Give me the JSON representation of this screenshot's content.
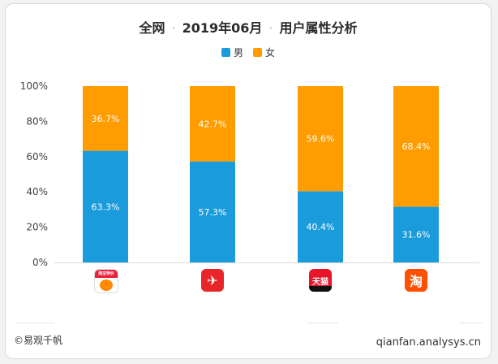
{
  "header": {
    "scope": "全网",
    "period": "2019年06月",
    "title": "用户属性分析"
  },
  "colors": {
    "male": "#1a9bdc",
    "female": "#ff9c00"
  },
  "chart_data": {
    "type": "bar",
    "stacked": true,
    "categories": [
      "taobao-tejia-app",
      "kaola-app",
      "tmall-app",
      "taobao-app"
    ],
    "series": [
      {
        "name": "男",
        "values": [
          63.3,
          57.3,
          40.4,
          31.6
        ],
        "labels": [
          "63.3%",
          "57.3%",
          "40.4%",
          "31.6%"
        ]
      },
      {
        "name": "女",
        "values": [
          36.7,
          42.7,
          59.6,
          68.4
        ],
        "labels": [
          "36.7%",
          "42.7%",
          "59.6%",
          "68.4%"
        ]
      }
    ],
    "yticks": [
      "0%",
      "20%",
      "40%",
      "60%",
      "80%",
      "100%"
    ],
    "ylim": [
      0,
      100
    ],
    "legend_position": "top-center",
    "grid": false
  },
  "app_icons": [
    {
      "name": "taobao-tejia-icon",
      "text": "淘宝特价"
    },
    {
      "name": "kaola-icon",
      "text": ""
    },
    {
      "name": "tmall-icon",
      "text": "天猫"
    },
    {
      "name": "taobao-icon",
      "text": "淘"
    }
  ],
  "footer": {
    "source": "©易观千帆",
    "site": "qianfan.analysys.cn"
  }
}
